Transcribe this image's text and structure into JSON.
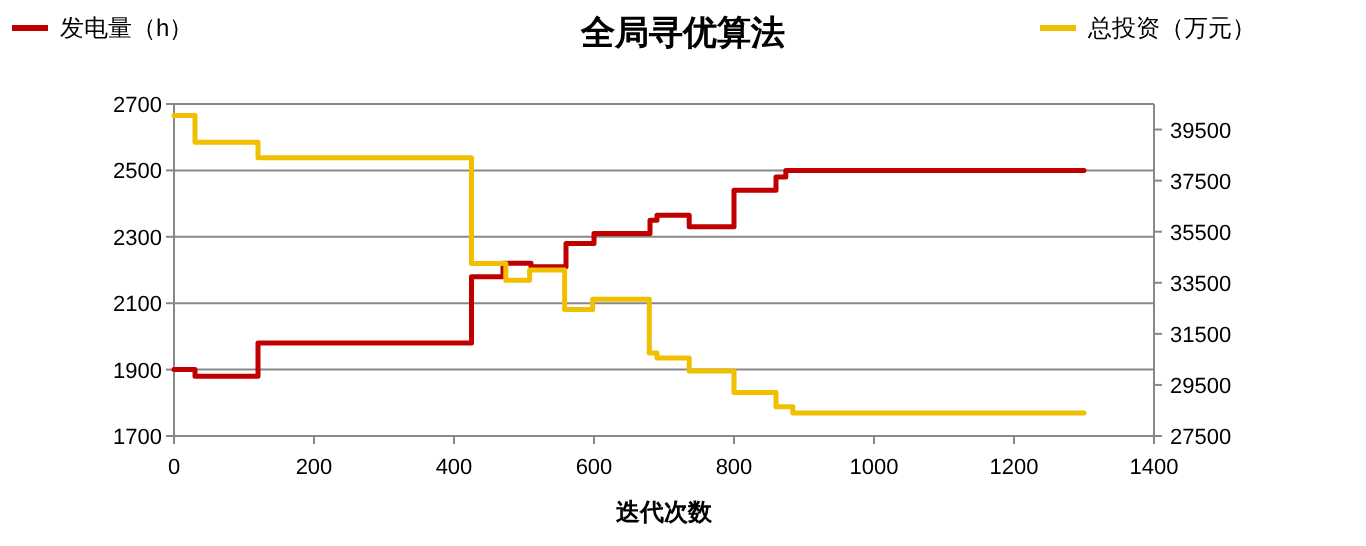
{
  "chart_data": {
    "type": "step",
    "title": "全局寻优算法",
    "xlabel": "迭代次数",
    "legend": "top",
    "grid": "y",
    "xlim": [
      0,
      1400
    ],
    "xticks": [
      0,
      200,
      400,
      600,
      800,
      1000,
      1200,
      1400
    ],
    "ylim": [
      1700,
      2700
    ],
    "yticks": [
      1700,
      1900,
      2100,
      2300,
      2500,
      2700
    ],
    "y2lim": [
      27500,
      40500
    ],
    "y2ticks": [
      27500,
      29500,
      31500,
      33500,
      35500,
      37500,
      39500
    ],
    "series": [
      {
        "name": "发电量（h）",
        "color": "#c00000",
        "x": [
          0,
          30,
          120,
          425,
          470,
          510,
          560,
          600,
          680,
          690,
          736,
          800,
          860,
          874,
          1300
        ],
        "values": [
          1900,
          1880,
          1980,
          2180,
          2220,
          2210,
          2280,
          2310,
          2350,
          2365,
          2330,
          2440,
          2480,
          2500,
          2500
        ]
      },
      {
        "name": "总投资（万元）",
        "color": "#f0c000",
        "axis": "y2",
        "x": [
          0,
          30,
          120,
          425,
          474,
          508,
          558,
          598,
          679,
          690,
          736,
          800,
          860,
          884,
          1300
        ],
        "values": [
          40050,
          39000,
          38400,
          34250,
          33600,
          34000,
          32450,
          32850,
          30750,
          30550,
          30050,
          29200,
          28650,
          28400,
          28400
        ]
      }
    ]
  }
}
